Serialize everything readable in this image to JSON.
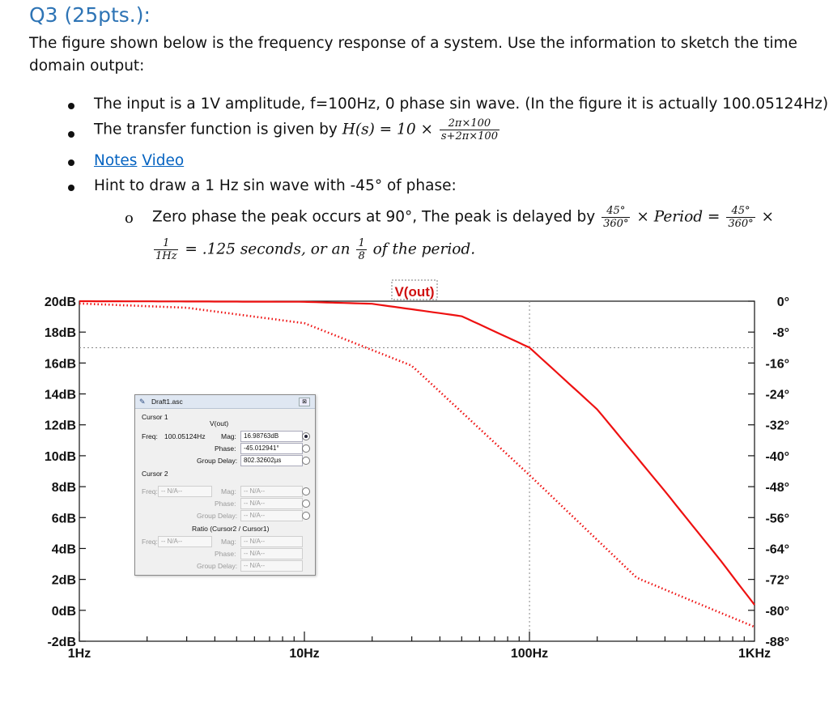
{
  "question": {
    "title": "Q3 (25pts.):",
    "intro_line1": "The figure shown below is the frequency response of a system. Use the information to sketch the time",
    "intro_line2": "domain output:",
    "bullets": {
      "input": "The input is a 1V amplitude, f=100Hz, 0 phase sin wave. (In the figure it is actually 100.05124Hz)",
      "tf_text": "The transfer function is given by ",
      "tf_lhs": "H(s) = 10 ×",
      "tf_num": "2π×100",
      "tf_den": "s+2π×100",
      "notes_link": "Notes",
      "video_link": "Video",
      "hint": "Hint to draw a 1 Hz sin wave with -45° of phase:"
    },
    "sub": {
      "marker": "o",
      "text1": "Zero phase the peak occurs at 90°,  The peak is delayed by",
      "frac1_num": "45°",
      "frac1_den": "360°",
      "mid": "× Period =",
      "frac2_num": "45°",
      "frac2_den": "360°",
      "times": "×",
      "line2_frac_num": "1",
      "line2_frac_den": "1Hz",
      "line2_a": "= .125 seconds, or an",
      "line2_frac2_num": "1",
      "line2_frac2_den": "8",
      "line2_b": "of the period."
    }
  },
  "chart_data": {
    "type": "line",
    "title": "V(out)",
    "x_axis": {
      "scale": "log",
      "range": [
        1,
        1000
      ],
      "tick_labels": [
        "1Hz",
        "10Hz",
        "100Hz",
        "1KHz"
      ]
    },
    "y_left": {
      "label_ticks": [
        "20dB",
        "18dB",
        "16dB",
        "14dB",
        "12dB",
        "10dB",
        "8dB",
        "6dB",
        "4dB",
        "2dB",
        "0dB",
        "-2dB"
      ],
      "range": [
        -2,
        20
      ]
    },
    "y_right": {
      "label_ticks": [
        "0°",
        "-8°",
        "-16°",
        "-24°",
        "-32°",
        "-40°",
        "-48°",
        "-56°",
        "-64°",
        "-72°",
        "-80°",
        "-88°"
      ],
      "range": [
        -88,
        0
      ]
    },
    "cursor": {
      "freq": 100.05124,
      "mag_db": 16.98763
    },
    "series": [
      {
        "style": "solid",
        "color": "#ee1111",
        "x": [
          1,
          10,
          20,
          50,
          100,
          200,
          400,
          700,
          1000
        ],
        "y": [
          20.0,
          19.96,
          19.83,
          19.03,
          17.0,
          13.0,
          7.7,
          3.3,
          0.35
        ]
      },
      {
        "style": "dotted",
        "color": "#ee1111",
        "axis": "right",
        "x": [
          1,
          3,
          10,
          30,
          100,
          300,
          1000
        ],
        "y": [
          -0.6,
          -1.7,
          -5.7,
          -16.7,
          -45.0,
          -71.6,
          -84.3
        ]
      }
    ]
  },
  "dialog": {
    "title": "Draft1.asc",
    "close": "⊠",
    "cursor1": "Cursor 1",
    "trace": "V(out)",
    "freq_label": "Freq:",
    "freq_value": "100.05124Hz",
    "mag_label": "Mag:",
    "mag_value": "16.98763dB",
    "phase_label": "Phase:",
    "phase_value": "-45.012941°",
    "gd_label": "Group Delay:",
    "gd_value": "802.32602µs",
    "cursor2": "Cursor 2",
    "na": "-- N/A--",
    "ratio": "Ratio (Cursor2 / Cursor1)"
  }
}
